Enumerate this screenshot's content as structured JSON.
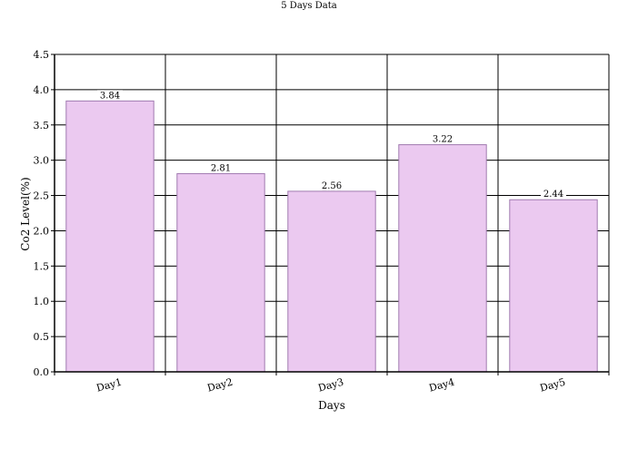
{
  "chart_data": {
    "type": "bar",
    "title": "5 Days Data",
    "xlabel": "Days",
    "ylabel": "Co2 Level(%)",
    "categories": [
      "Day1",
      "Day2",
      "Day3",
      "Day4",
      "Day5"
    ],
    "values": [
      3.84,
      2.81,
      2.56,
      3.22,
      2.44
    ],
    "value_labels": [
      "3.84",
      "2.81",
      "2.56",
      "3.22",
      "2.44"
    ],
    "ylim": [
      0,
      4.5
    ],
    "yticks": [
      "0.0",
      "0.5",
      "1.0",
      "1.5",
      "2.0",
      "2.5",
      "3.0",
      "3.5",
      "4.0",
      "4.5"
    ],
    "grid": true,
    "bar_color": "#ebc9f0",
    "bar_edge_color": "#a07ab0"
  }
}
